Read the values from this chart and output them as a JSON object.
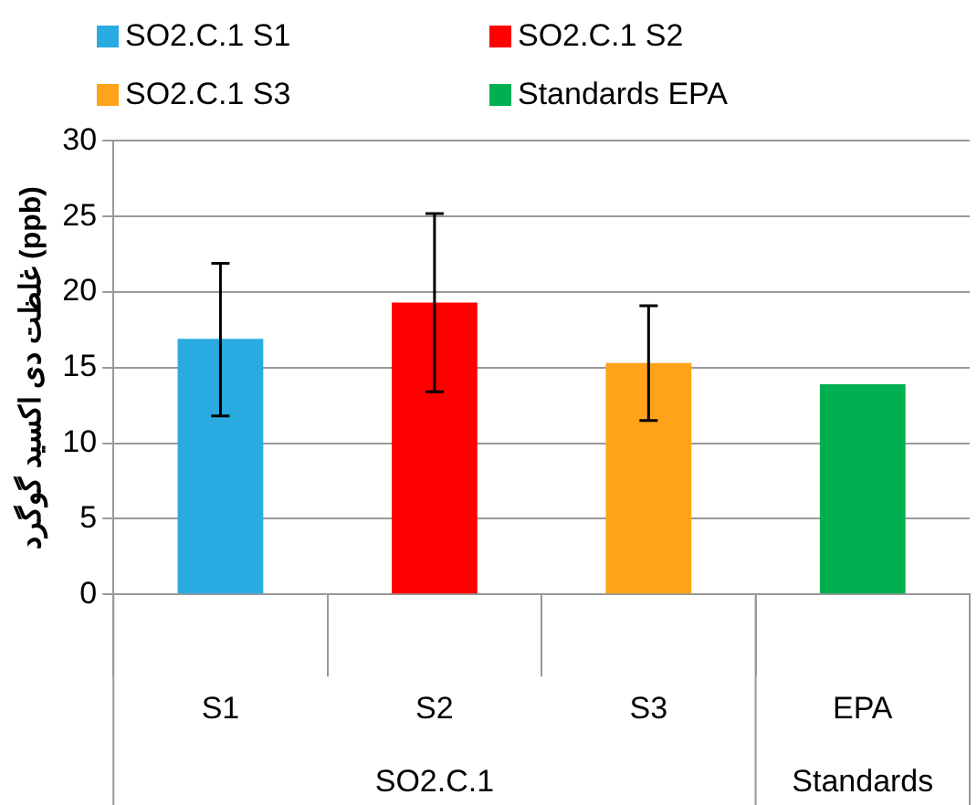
{
  "chart_data": {
    "type": "bar",
    "ylabel": "غلظت دی اکسید گوگرد (ppb)",
    "categories": [
      "S1",
      "S2",
      "S3",
      "EPA"
    ],
    "series": [
      {
        "name": "SO2.C.1 S1",
        "color": "#29abe2",
        "values": [
          16.9,
          null,
          null,
          null
        ],
        "errors": [
          [
            11.8,
            21.9
          ],
          null,
          null,
          null
        ]
      },
      {
        "name": "SO2.C.1 S2",
        "color": "#ff0000",
        "values": [
          null,
          19.3,
          null,
          null
        ],
        "errors": [
          null,
          [
            13.4,
            25.2
          ],
          null,
          null
        ]
      },
      {
        "name": "SO2.C.1 S3",
        "color": "#ffa31a",
        "values": [
          null,
          null,
          15.3,
          null
        ],
        "errors": [
          null,
          null,
          [
            11.5,
            19.1
          ],
          null
        ]
      },
      {
        "name": "Standards EPA",
        "color": "#00b050",
        "values": [
          null,
          null,
          null,
          13.9
        ]
      }
    ],
    "annotations": [
      "SO2.C.1",
      "Standards"
    ],
    "ylim": [
      0,
      30
    ],
    "yticks": [
      0,
      5,
      10,
      15,
      20,
      25,
      30
    ],
    "grid": "y",
    "legend": "top"
  }
}
